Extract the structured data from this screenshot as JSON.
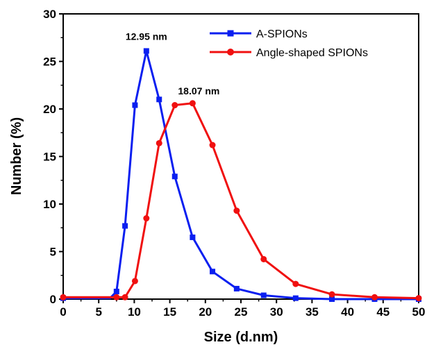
{
  "chart_data": {
    "type": "line",
    "xlabel": "Size (d.nm)",
    "ylabel": "Number (%)",
    "xlim": [
      0,
      50
    ],
    "ylim": [
      0,
      30
    ],
    "xticks": [
      "0",
      "5",
      "10",
      "15",
      "20",
      "25",
      "30",
      "35",
      "40",
      "45",
      "50"
    ],
    "yticks": [
      "0",
      "5",
      "10",
      "15",
      "20",
      "25",
      "30"
    ],
    "grid": false,
    "legend_position": "top-right",
    "series": [
      {
        "name": "A-SPIONs",
        "color": "#0a1ff0",
        "marker": "square",
        "x": [
          0,
          0.6,
          1.2,
          1.8,
          2.4,
          3.0,
          3.6,
          4.2,
          4.8,
          5.4,
          6.0,
          6.6,
          7.5,
          8.7,
          10.1,
          11.7,
          13.5,
          15.7,
          18.2,
          21.0,
          24.4,
          28.2,
          32.7,
          37.8,
          43.8,
          50.0
        ],
        "y": [
          0.1,
          0.1,
          0.1,
          0.1,
          0.1,
          0.1,
          0.1,
          0.1,
          0.1,
          0.1,
          0.1,
          0.1,
          0.8,
          7.7,
          20.4,
          26.1,
          21.0,
          12.9,
          6.5,
          2.9,
          1.1,
          0.4,
          0.1,
          0.0,
          0.0,
          0.0
        ]
      },
      {
        "name": "Angle-shaped SPIONs",
        "color": "#f01010",
        "marker": "circle",
        "x": [
          0,
          0.6,
          1.2,
          1.8,
          2.4,
          3.0,
          3.6,
          4.2,
          4.8,
          5.4,
          6.0,
          6.6,
          7.5,
          8.7,
          10.1,
          11.7,
          13.5,
          15.7,
          18.2,
          21.0,
          24.4,
          28.2,
          32.7,
          37.8,
          43.8,
          50.0
        ],
        "y": [
          0.2,
          0.2,
          0.2,
          0.2,
          0.2,
          0.2,
          0.2,
          0.2,
          0.2,
          0.2,
          0.2,
          0.2,
          0.2,
          0.2,
          1.9,
          8.5,
          16.4,
          20.4,
          20.6,
          16.2,
          9.3,
          4.2,
          1.6,
          0.5,
          0.2,
          0.1
        ]
      }
    ],
    "annotations": [
      {
        "text": "12.95 nm",
        "x": 11.7,
        "y": 26.1
      },
      {
        "text": "18.07 nm",
        "x": 18.2,
        "y": 20.6
      }
    ]
  }
}
